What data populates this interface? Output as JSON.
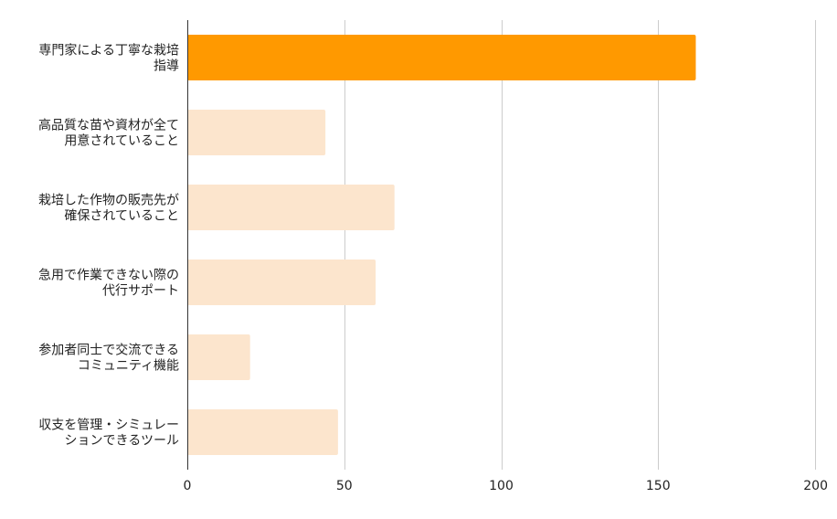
{
  "chart_data": {
    "type": "bar",
    "orientation": "horizontal",
    "title": "",
    "xlabel": "",
    "ylabel": "",
    "categories": [
      [
        "専門家による丁寧な栽培",
        "指導"
      ],
      [
        "高品質な苗や資材が全て",
        "用意されていること"
      ],
      [
        "栽培した作物の販売先が",
        "確保されていること"
      ],
      [
        "急用で作業できない際の",
        "代行サポート"
      ],
      [
        "参加者同士で交流できる",
        "コミュニティ機能"
      ],
      [
        "収支を管理・シミュレー",
        "ションできるツール"
      ]
    ],
    "values": [
      162,
      44,
      66,
      60,
      20,
      48
    ],
    "xlim": [
      0,
      200
    ],
    "xticks": [
      0,
      50,
      100,
      150,
      200
    ],
    "grid": true,
    "legend": "none",
    "colors": {
      "highlight": "#ff9900",
      "normal": "#fce5cd",
      "grid": "#cccccc",
      "axis": "#333333"
    },
    "highlight_index": 0
  }
}
